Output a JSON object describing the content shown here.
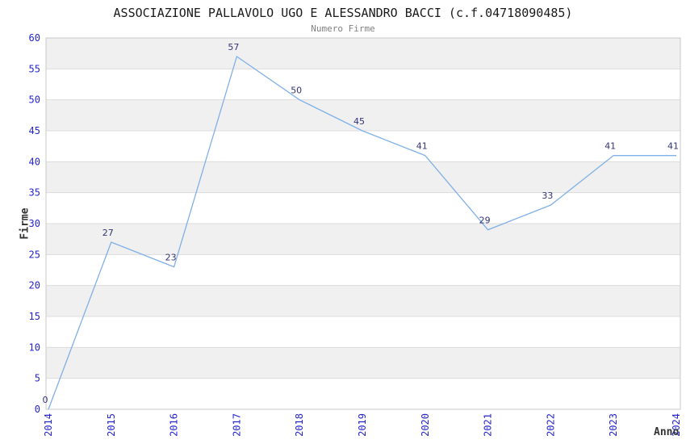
{
  "chart_data": {
    "type": "line",
    "title": "ASSOCIAZIONE PALLAVOLO UGO E ALESSANDRO BACCI (c.f.04718090485)",
    "subtitle": "Numero Firme",
    "xlabel": "Anno",
    "ylabel": "Firme",
    "categories": [
      "2014",
      "2015",
      "2016",
      "2017",
      "2018",
      "2019",
      "2020",
      "2021",
      "2022",
      "2023",
      "2024"
    ],
    "values": [
      0,
      27,
      23,
      57,
      50,
      45,
      41,
      29,
      33,
      41,
      41
    ],
    "ylim": [
      0,
      60
    ],
    "ytick_step": 5,
    "yticks": [
      0,
      5,
      10,
      15,
      20,
      25,
      30,
      35,
      40,
      45,
      50,
      55,
      60
    ],
    "grid": "horizontal-bands",
    "legend": "none",
    "data_labels_visible": true,
    "colors": {
      "line": "#7fb0e6",
      "tick_label": "#2525cd",
      "data_label": "#333377",
      "band": "#f0f0f0",
      "gridline": "#dcdcdc",
      "plot_border": "#c8c8c8",
      "title": "#1a1a1a",
      "subtitle": "#808080",
      "axis_title": "#333333",
      "background": "#ffffff"
    }
  }
}
